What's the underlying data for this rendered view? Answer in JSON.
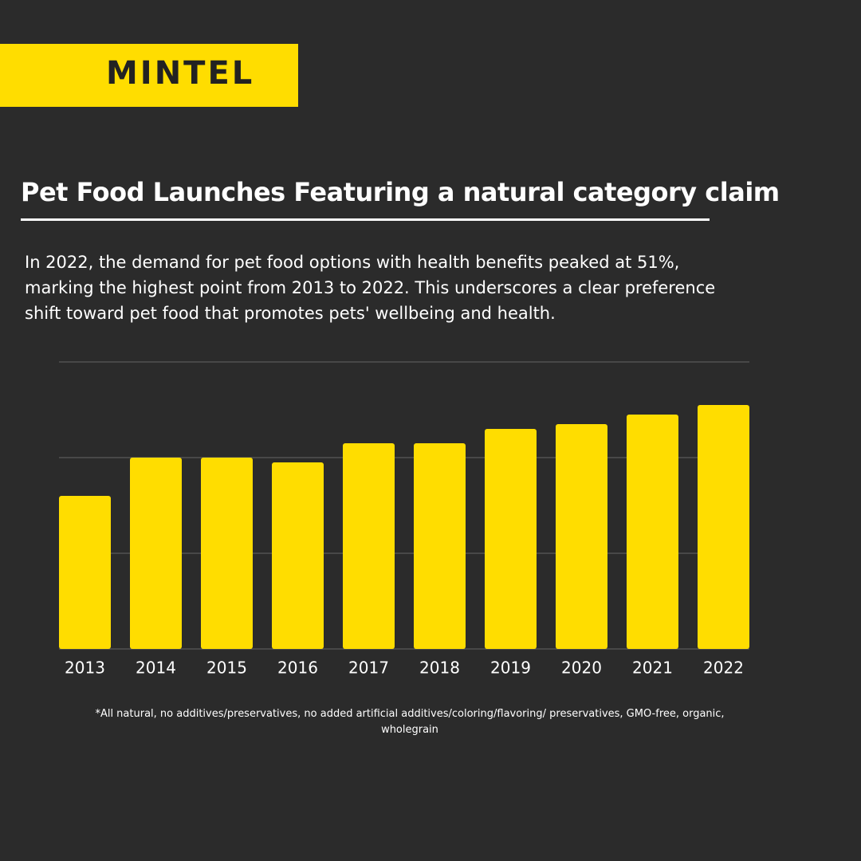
{
  "brand": "MINTEL",
  "chart_data": {
    "type": "bar",
    "title": "Pet Food Launches Featuring a natural category claim",
    "subtitle": "In 2022, the demand for pet food options with health benefits peaked at 51%, marking the highest point from 2013 to 2022. This underscores a clear preference shift toward pet food that promotes pets' wellbeing and health.",
    "categories": [
      "2013",
      "2014",
      "2015",
      "2016",
      "2017",
      "2018",
      "2019",
      "2020",
      "2021",
      "2022"
    ],
    "values": [
      32,
      40,
      40,
      39,
      43,
      43,
      46,
      47,
      49,
      51
    ],
    "color": "#ffdd00",
    "ylim": [
      0,
      60
    ],
    "yticks": [
      0,
      20,
      40,
      60
    ],
    "grid": true,
    "footnote": "*All natural, no additives/preservatives, no added artificial additives/coloring/flavoring/ preservatives, GMO-free, organic, wholegrain"
  }
}
